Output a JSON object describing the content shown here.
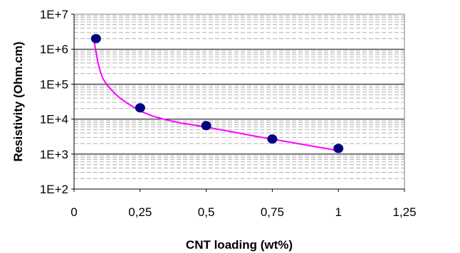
{
  "chart_data": {
    "type": "scatter",
    "title": "",
    "xlabel": "CNT loading (wt%)",
    "ylabel": "Resistivity (Ohm.cm)",
    "xlim": [
      0,
      1.25
    ],
    "ylim": [
      100,
      10000000
    ],
    "y_scale": "log",
    "grid": "horizontal, dashed minor lines",
    "x_ticks": [
      "0",
      "0,25",
      "0,5",
      "0,75",
      "1",
      "1,25"
    ],
    "x_tick_values": [
      0,
      0.25,
      0.5,
      0.75,
      1,
      1.25
    ],
    "y_ticks": [
      "1E+2",
      "1E+3",
      "1E+4",
      "1E+5",
      "1E+6",
      "1E+7"
    ],
    "y_tick_values": [
      100,
      1000,
      10000,
      100000,
      1000000,
      10000000
    ],
    "series": [
      {
        "kind": "points",
        "color": "#000080",
        "x": [
          0.083,
          0.25,
          0.5,
          0.75,
          1.0
        ],
        "y": [
          2000000,
          21000,
          6500,
          2700,
          1450
        ]
      },
      {
        "kind": "fit-curve",
        "color": "#ff00ff",
        "x": [
          0.075,
          0.08,
          0.085,
          0.09,
          0.1,
          0.11,
          0.125,
          0.15,
          0.175,
          0.2,
          0.25,
          0.3,
          0.35,
          0.4,
          0.45,
          0.5,
          0.6,
          0.7,
          0.8,
          0.9,
          1.0
        ],
        "y": [
          2000000,
          1100000,
          700000,
          420000,
          220000,
          140000,
          95000,
          58000,
          39000,
          29000,
          17000,
          12000,
          9500,
          7800,
          6800,
          5900,
          4300,
          3100,
          2300,
          1700,
          1250
        ]
      }
    ]
  }
}
